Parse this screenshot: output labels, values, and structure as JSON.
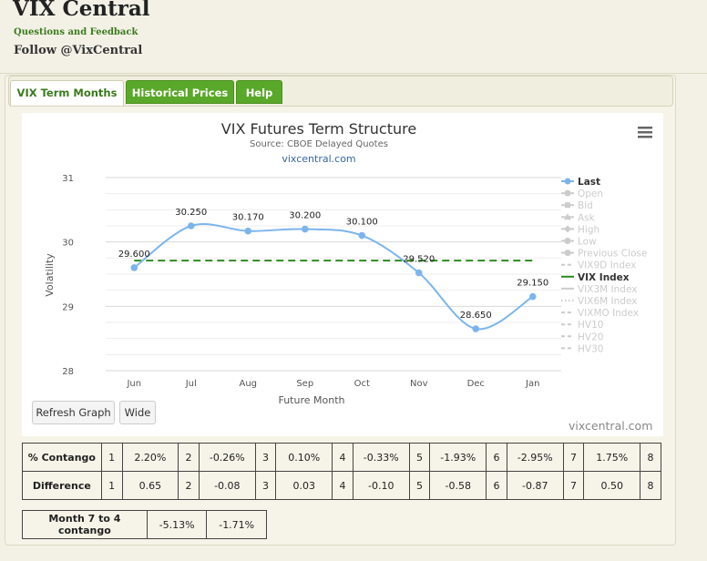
{
  "header": {
    "title": "VIX Central",
    "feedback_link": "Questions and Feedback",
    "follow": "Follow @VixCentral"
  },
  "tabs": [
    {
      "label": "VIX Term Months",
      "active": true
    },
    {
      "label": "Historical Prices",
      "active": false
    },
    {
      "label": "Help",
      "active": false
    }
  ],
  "chart": {
    "menu_icon": "hamburger-menu-icon",
    "buttons": {
      "refresh": "Refresh Graph",
      "wide": "Wide"
    },
    "credit": "vixcentral.com"
  },
  "chart_data": {
    "type": "line",
    "title": "VIX Futures Term Structure",
    "subtitle": "Source: CBOE Delayed Quotes",
    "subtitle_link": "vixcentral.com",
    "xlabel": "Future Month",
    "ylabel": "Volatility",
    "ylim": [
      28,
      31
    ],
    "yticks": [
      "28",
      "29",
      "30",
      "31"
    ],
    "categories": [
      "Jun",
      "Jul",
      "Aug",
      "Sep",
      "Oct",
      "Nov",
      "Dec",
      "Jan"
    ],
    "series": [
      {
        "name": "Last",
        "values": [
          29.6,
          30.25,
          30.17,
          30.2,
          30.1,
          29.52,
          28.65,
          29.15
        ],
        "labels": [
          "29.600",
          "30.250",
          "30.170",
          "30.200",
          "30.100",
          "29.520",
          "28.650",
          "29.150"
        ],
        "color": "#7cb5ec"
      },
      {
        "name": "VIX Index",
        "value": 29.71,
        "color": "#2d8a1f"
      }
    ],
    "grid": true,
    "legend_position": "right",
    "legend": [
      {
        "label": "Last",
        "style": "dot-line",
        "active": true,
        "color": "#7cb5ec"
      },
      {
        "label": "Open",
        "style": "dot-line",
        "active": false
      },
      {
        "label": "Bid",
        "style": "square-line",
        "active": false
      },
      {
        "label": "Ask",
        "style": "triangle-line",
        "active": false
      },
      {
        "label": "High",
        "style": "diamond-line",
        "active": false
      },
      {
        "label": "Low",
        "style": "dot-line",
        "active": false
      },
      {
        "label": "Previous Close",
        "style": "dot-line",
        "active": false
      },
      {
        "label": "VIX9D Index",
        "style": "dash",
        "active": false
      },
      {
        "label": "VIX Index",
        "style": "solid",
        "active": true,
        "color": "#2d8a1f"
      },
      {
        "label": "VIX3M Index",
        "style": "solid",
        "active": false
      },
      {
        "label": "VIX6M Index",
        "style": "dotted",
        "active": false
      },
      {
        "label": "VIXMO Index",
        "style": "dash",
        "active": false
      },
      {
        "label": "HV10",
        "style": "dash",
        "active": false
      },
      {
        "label": "HV20",
        "style": "dash",
        "active": false
      },
      {
        "label": "HV30",
        "style": "dash",
        "active": false
      }
    ]
  },
  "contango_table": {
    "rows": [
      {
        "label": "% Contango",
        "cells": [
          "1",
          "2.20%",
          "2",
          "-0.26%",
          "3",
          "0.10%",
          "4",
          "-0.33%",
          "5",
          "-1.93%",
          "6",
          "-2.95%",
          "7",
          "1.75%",
          "8"
        ]
      },
      {
        "label": "Difference",
        "cells": [
          "1",
          "0.65",
          "2",
          "-0.08",
          "3",
          "0.03",
          "4",
          "-0.10",
          "5",
          "-0.58",
          "6",
          "-0.87",
          "7",
          "0.50",
          "8"
        ]
      }
    ]
  },
  "month_contango": {
    "label": "Month 7 to 4 contango",
    "values": [
      "-5.13%",
      "-1.71%"
    ]
  }
}
